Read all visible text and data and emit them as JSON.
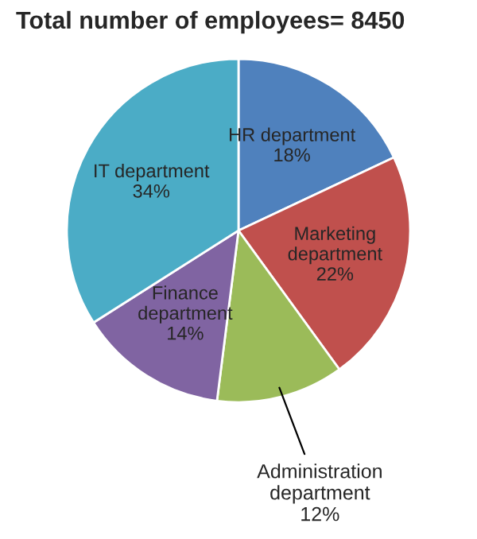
{
  "chart_data": {
    "type": "pie",
    "title": "Total number of employees= 8450",
    "categories": [
      "HR department",
      "Marketing\ndepartment",
      "Administration\ndepartment",
      "Finance\ndepartment",
      "IT department"
    ],
    "values": [
      18,
      22,
      12,
      14,
      34
    ],
    "value_labels": [
      "18%",
      "22%",
      "12%",
      "14%",
      "34%"
    ],
    "colors": [
      "#4f81bd",
      "#c0504d",
      "#9bbb59",
      "#8064a2",
      "#4bacc6"
    ],
    "legend": false
  }
}
